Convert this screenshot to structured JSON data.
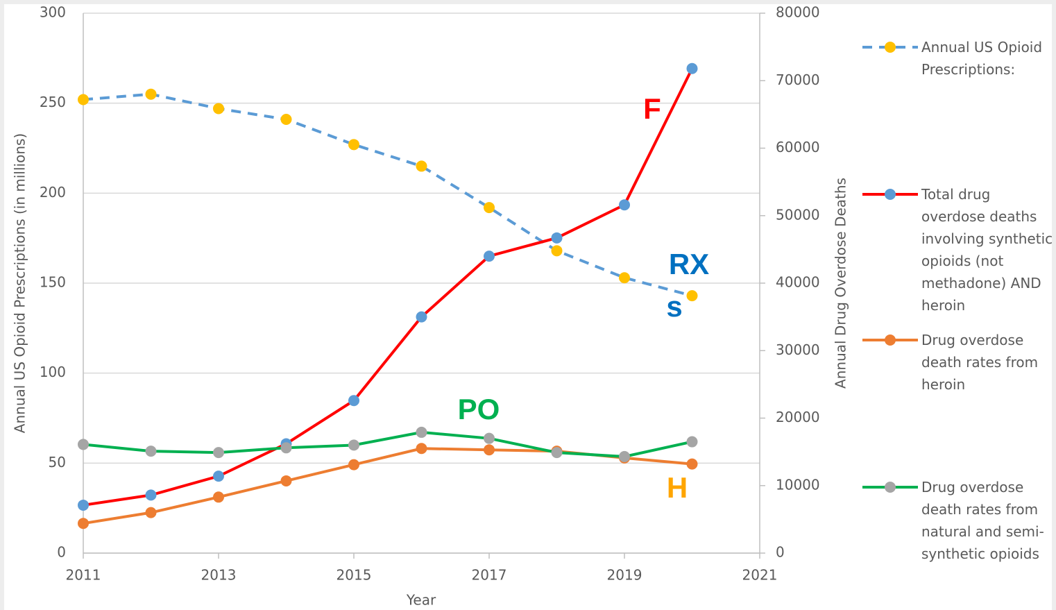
{
  "chart_data": {
    "type": "line",
    "x": [
      2011,
      2012,
      2013,
      2014,
      2015,
      2016,
      2017,
      2018,
      2019,
      2020
    ],
    "xlim": [
      2011,
      2021
    ],
    "xticks": [
      2011,
      2013,
      2015,
      2017,
      2019,
      2021
    ],
    "xlabel": "Year",
    "ylim": [
      0,
      300
    ],
    "yticks": [
      0,
      50,
      100,
      150,
      200,
      250,
      300
    ],
    "ylabel": "Annual US Opioid Prescriptions (in millions)",
    "y2lim": [
      0,
      80000
    ],
    "y2ticks": [
      0,
      10000,
      20000,
      30000,
      40000,
      50000,
      60000,
      70000,
      80000
    ],
    "y2label": "Annual Drug Overdose Deaths",
    "grid": true,
    "legend": "right",
    "series": [
      {
        "name": "Annual US Opioid Prescriptions:",
        "color": "#5b9bd5",
        "marker_color": "#ffc000",
        "dashed": true,
        "values": [
          252,
          255,
          247,
          241,
          227,
          215,
          192,
          168,
          153,
          143
        ]
      },
      {
        "name": "Total drug overdose deaths involving synthetic opioids (not methadone) AND heroin",
        "color": "#ff0000",
        "marker_color": "#5b9bd5",
        "axis": "y2",
        "values": [
          7100,
          8600,
          11400,
          16200,
          22600,
          35000,
          44000,
          46700,
          51600,
          71800
        ]
      },
      {
        "name": "Drug overdose death rates from heroin",
        "color": "#ed7d31",
        "marker_color": "#ed7d31",
        "axis": "y2",
        "values": [
          4400,
          6000,
          8300,
          10700,
          13100,
          15500,
          15300,
          15100,
          14100,
          13200
        ]
      },
      {
        "name": "Drug overdose death rates from natural and semi-synthetic opioids",
        "color": "#00b050",
        "marker_color": "#a5a5a5",
        "axis": "y2",
        "values": [
          16100,
          15100,
          14900,
          15600,
          16000,
          17900,
          17000,
          14900,
          14300,
          16500
        ]
      }
    ],
    "annotations": [
      {
        "text": "F",
        "color": "#ff0000"
      },
      {
        "text": "RX",
        "color": "#0070c0"
      },
      {
        "text": "s",
        "color": "#0070c0"
      },
      {
        "text": "PO",
        "color": "#00b050"
      },
      {
        "text": "H",
        "color": "#ffa500"
      }
    ]
  }
}
